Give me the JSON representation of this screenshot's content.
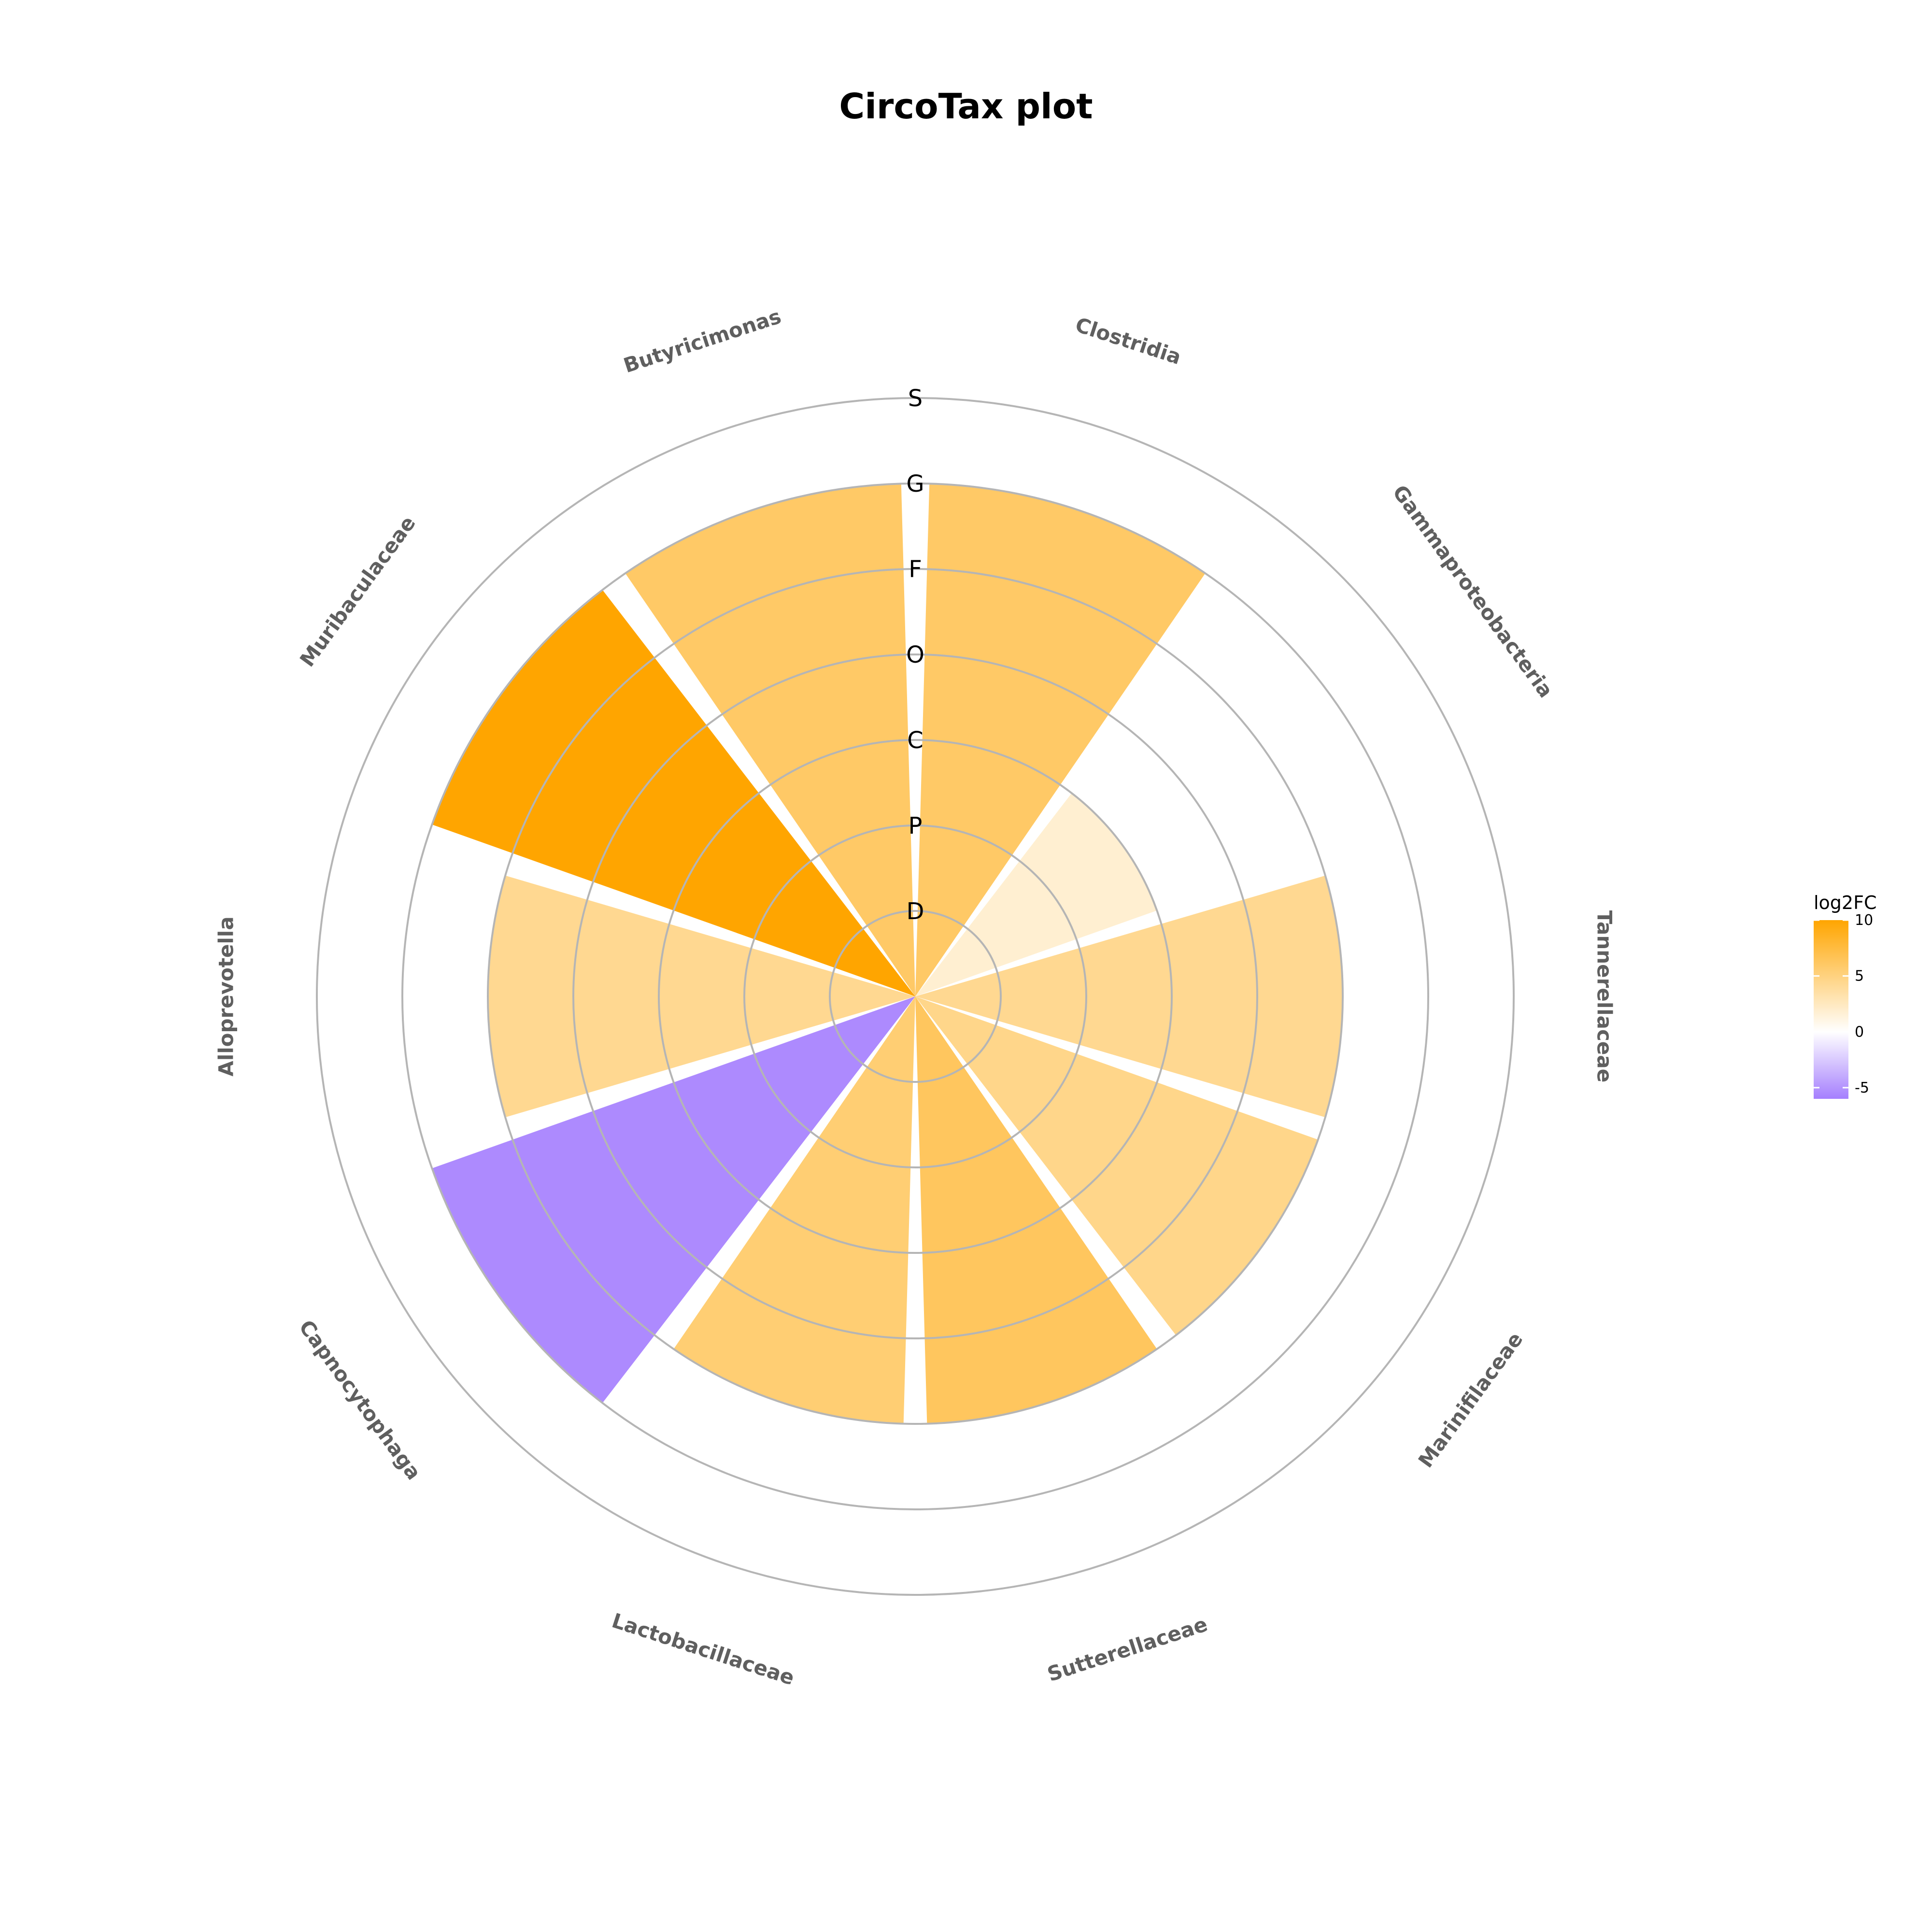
{
  "chart_data": {
    "type": "bar",
    "coordinate_system": "polar",
    "title": "CircoTax plot",
    "ring_labels": [
      "D",
      "P",
      "C",
      "O",
      "F",
      "G",
      "S"
    ],
    "categories": [
      "Clostridia",
      "Gammaproteobacteria",
      "Tannerellaceae",
      "Marinifilaceae",
      "Sutterellaceae",
      "Lactobacillaceae",
      "Capnocytophaga",
      "Alloprevotella",
      "Muribaculaceae",
      "Butyricimonas"
    ],
    "values": [
      6,
      3,
      5,
      5,
      5,
      5,
      6,
      5,
      6,
      6
    ],
    "fill_log2FC": [
      6.0,
      1.8,
      4.3,
      4.6,
      6.3,
      5.5,
      -5.5,
      4.3,
      10.0,
      6.0
    ],
    "legend": {
      "title": "log2FC",
      "ticks": [
        "10",
        "5",
        "0",
        "-5"
      ],
      "tick_values": [
        10,
        5,
        0,
        -5
      ],
      "range": [
        -6,
        10
      ],
      "placement": "right"
    },
    "colors": {
      "low": "#a57ffe",
      "mid": "#ffffff",
      "high": "#ffa500",
      "grid": "#b5b5b5",
      "category_label": "#5f5f5f"
    },
    "grid": true
  }
}
